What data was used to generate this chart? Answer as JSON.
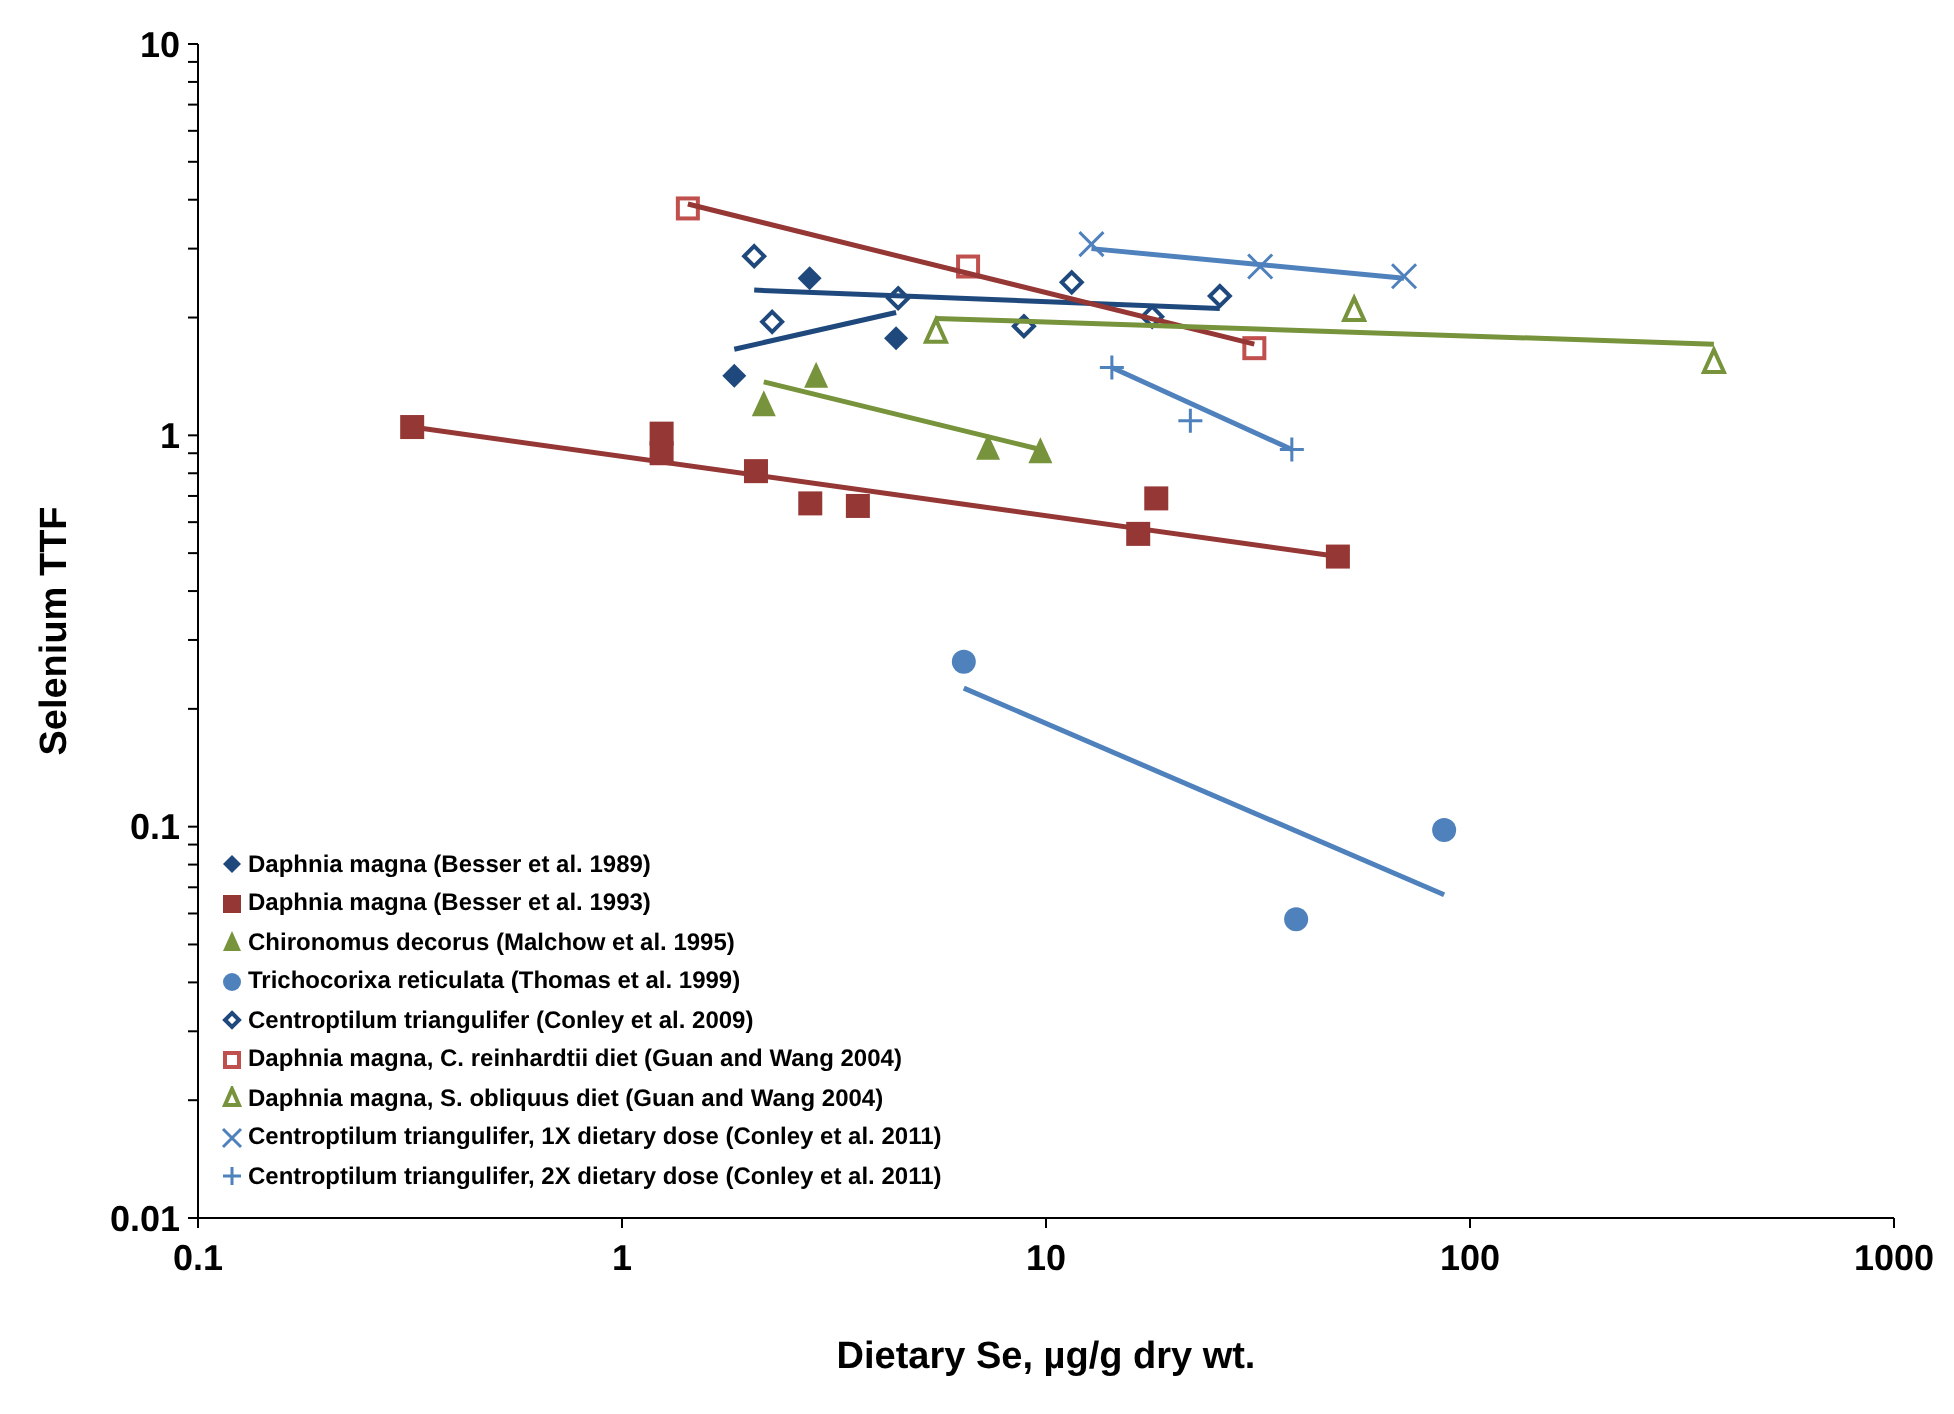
{
  "chart_data": {
    "type": "scatter",
    "xlabel": "Dietary Se, µg/g dry wt.",
    "ylabel": "Selenium TTF",
    "log": "xy",
    "legend": "bottom left",
    "grid": false,
    "xlim": [
      0.1,
      1000
    ],
    "xticks": [
      0.1,
      1,
      10,
      100,
      1000
    ],
    "ylim": [
      0.01,
      10
    ],
    "yticks": [
      0.01,
      {
        "value": 0.02,
        "label": null
      },
      {
        "value": 0.03,
        "label": null
      },
      {
        "value": 0.04,
        "label": null
      },
      {
        "value": 0.05,
        "label": null
      },
      {
        "value": 0.06,
        "label": null
      },
      {
        "value": 0.07,
        "label": null
      },
      {
        "value": 0.08,
        "label": null
      },
      {
        "value": 0.09,
        "label": null
      },
      0.1,
      {
        "value": 0.2,
        "label": null
      },
      {
        "value": 0.3,
        "label": null
      },
      {
        "value": 0.4,
        "label": null
      },
      {
        "value": 0.5,
        "label": null
      },
      {
        "value": 0.6,
        "label": null
      },
      {
        "value": 0.7,
        "label": null
      },
      {
        "value": 0.8,
        "label": null
      },
      {
        "value": 0.9,
        "label": null
      },
      1,
      {
        "value": 2,
        "label": null
      },
      {
        "value": 3,
        "label": null
      },
      {
        "value": 4,
        "label": null
      },
      {
        "value": 5,
        "label": null
      },
      {
        "value": 6,
        "label": null
      },
      {
        "value": 7,
        "label": null
      },
      {
        "value": 8,
        "label": null
      },
      {
        "value": 9,
        "label": null
      },
      10
    ],
    "series": [
      {
        "type": "scatter",
        "name": "Daphnia magna (Besser  et al. 1989)",
        "color": "#1f497d",
        "marker": "diamond",
        "x": [
          1.84,
          2.77,
          4.43
        ],
        "values": [
          1.42,
          2.52,
          1.77
        ]
      },
      {
        "type": "scatter",
        "name": "Daphnia magna (Besser  et al. 1993)",
        "color": "#953735",
        "marker": "square",
        "x": [
          0.32,
          1.24,
          1.24,
          2.07,
          2.78,
          3.6,
          16.5,
          18.2,
          48.8
        ],
        "values": [
          1.05,
          1.01,
          0.9,
          0.81,
          0.67,
          0.66,
          0.56,
          0.69,
          0.49
        ]
      },
      {
        "type": "scatter",
        "name": "Chironomus decorus (Malchow et al. 1995)",
        "color": "#77933c",
        "marker": "triangle",
        "x": [
          2.16,
          2.87,
          7.3,
          9.7
        ],
        "values": [
          1.2,
          1.42,
          0.93,
          0.91
        ]
      },
      {
        "type": "scatter",
        "name": "Trichocorixa reticulata (Thomas et al. 1999)",
        "color": "#4f81bd",
        "marker": "circle",
        "x": [
          6.4,
          38.9,
          86.9
        ],
        "values": [
          0.264,
          0.058,
          0.098
        ]
      },
      {
        "type": "scatter",
        "name": "Centroptilum triangulifer (Conley et al. 2009)",
        "color": "#1f497d",
        "marker": "diamond-open",
        "x": [
          2.05,
          2.26,
          4.48,
          8.87,
          11.5,
          17.8,
          25.7
        ],
        "values": [
          2.87,
          1.95,
          2.24,
          1.9,
          2.46,
          2.01,
          2.27
        ]
      },
      {
        "type": "scatter",
        "name": "Daphnia magna, C. reinhardtii diet (Guan and Wang 2004)",
        "color": "#c0504d",
        "marker": "square-open",
        "x": [
          1.43,
          6.55,
          31
        ],
        "values": [
          3.8,
          2.7,
          1.67
        ]
      },
      {
        "type": "scatter",
        "name": "Daphnia magna, S. obliquus diet (Guan and Wang 2004)",
        "color": "#77933c",
        "marker": "triangle-open",
        "x": [
          5.5,
          53.3,
          376
        ],
        "values": [
          1.84,
          2.09,
          1.54
        ]
      },
      {
        "type": "scatter",
        "name": "Centroptilum triangulifer, 1X dietary dose (Conley et al. 2011)",
        "color": "#4f81bd",
        "marker": "x",
        "x": [
          12.8,
          32,
          69.9
        ],
        "values": [
          3.08,
          2.7,
          2.55
        ]
      },
      {
        "type": "scatter",
        "name": "Centroptilum triangulifer, 2X dietary dose (Conley et al. 2011)",
        "color": "#4f81bd",
        "marker": "cross",
        "x": [
          14.3,
          21.9,
          38
        ],
        "values": [
          1.49,
          1.09,
          0.92
        ]
      },
      {
        "type": "line",
        "color": "#1f497d",
        "marker": "none",
        "x": [
          1.84,
          4.43
        ],
        "values": [
          1.66,
          2.06
        ]
      },
      {
        "type": "line",
        "color": "#953735",
        "marker": "none",
        "x": [
          0.32,
          48.8
        ],
        "values": [
          1.05,
          0.49
        ]
      },
      {
        "type": "line",
        "color": "#77933c",
        "marker": "none",
        "x": [
          2.16,
          9.7
        ],
        "values": [
          1.37,
          0.92
        ]
      },
      {
        "type": "line",
        "color": "#4f81bd",
        "marker": "none",
        "x": [
          6.4,
          86.9
        ],
        "values": [
          0.226,
          0.067
        ]
      },
      {
        "type": "line",
        "color": "#1f497d",
        "marker": "none",
        "x": [
          2.05,
          25.7
        ],
        "values": [
          2.35,
          2.11
        ]
      },
      {
        "type": "line",
        "color": "#953735",
        "marker": "none",
        "x": [
          1.43,
          31
        ],
        "values": [
          3.9,
          1.71
        ]
      },
      {
        "type": "line",
        "color": "#77933c",
        "marker": "none",
        "x": [
          5.5,
          376
        ],
        "values": [
          1.99,
          1.71
        ]
      },
      {
        "type": "line",
        "color": "#4f81bd",
        "marker": "none",
        "x": [
          12.8,
          69.9
        ],
        "values": [
          3.0,
          2.52
        ]
      },
      {
        "type": "line",
        "color": "#4f81bd",
        "marker": "none",
        "x": [
          14.3,
          38
        ],
        "values": [
          1.49,
          0.92
        ]
      }
    ]
  }
}
